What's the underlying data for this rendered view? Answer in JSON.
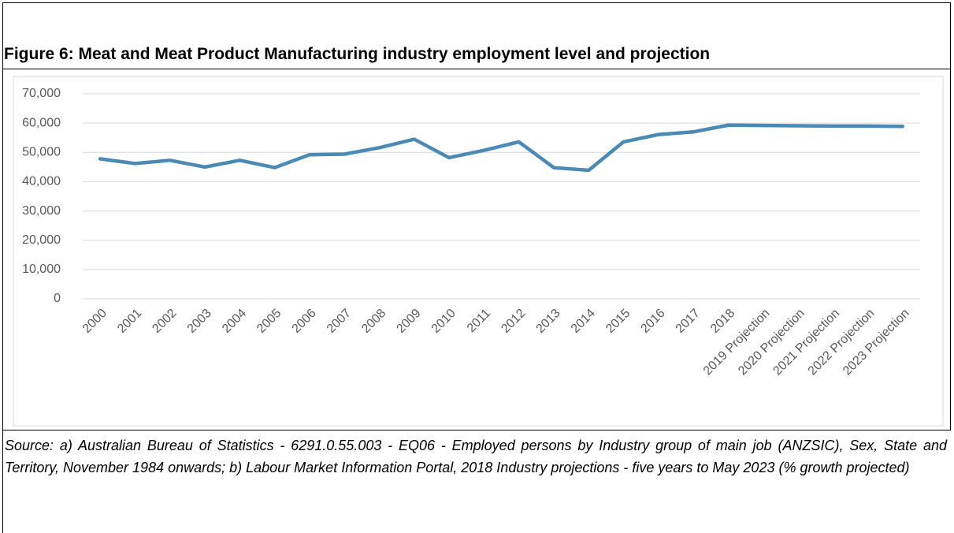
{
  "chart_data": {
    "type": "line",
    "title": "Figure 6: Meat and Meat Product Manufacturing industry employment level and projection",
    "source": "Source: a) Australian Bureau of Statistics - 6291.0.55.003 - EQ06 - Employed persons by Industry group of main job (ANZSIC), Sex, State and Territory, November 1984 onwards; b) Labour Market Information Portal, 2018 Industry projections - five years to May 2023 (% growth projected)",
    "categories": [
      "2000",
      "2001",
      "2002",
      "2003",
      "2004",
      "2005",
      "2006",
      "2007",
      "2008",
      "2009",
      "2010",
      "2011",
      "2012",
      "2013",
      "2014",
      "2015",
      "2016",
      "2017",
      "2018",
      "2019 Projection",
      "2020 Projection",
      "2021 Projection",
      "2022 Projection",
      "2023 Projection"
    ],
    "values": [
      47800,
      46200,
      47300,
      45000,
      47300,
      44800,
      49200,
      49400,
      51600,
      54500,
      48200,
      50700,
      53600,
      44800,
      43900,
      53600,
      56100,
      57000,
      59300,
      59200,
      59100,
      59000,
      59000,
      58900
    ],
    "color": "#4a8ab5",
    "ylim": [
      0,
      70000
    ],
    "yticks": [
      0,
      {
        "value": 10000,
        "label": "10,000"
      },
      {
        "value": 20000,
        "label": "20,000"
      },
      {
        "value": 30000,
        "label": "30,000"
      },
      {
        "value": 40000,
        "label": "40,000"
      },
      {
        "value": 50000,
        "label": "50,000"
      },
      {
        "value": 60000,
        "label": "60,000"
      },
      {
        "value": 70000,
        "label": "70,000"
      }
    ],
    "grid": true
  }
}
